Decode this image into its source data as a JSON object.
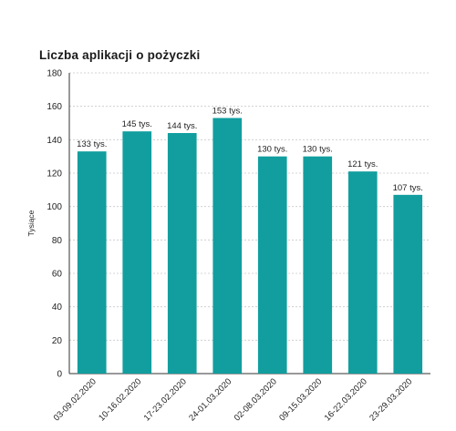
{
  "chart_data": {
    "type": "bar",
    "title": "Liczba aplikacji o pożyczki",
    "ylabel": "Tysiące",
    "xlabel": "",
    "ylim": [
      0,
      180
    ],
    "yticks": [
      0,
      20,
      40,
      60,
      80,
      100,
      120,
      140,
      160,
      180
    ],
    "grid": true,
    "bar_color": "#129e9f",
    "categories": [
      "03-09.02.2020",
      "10-16.02.2020",
      "17-23.02.2020",
      "24-01.03.2020",
      "02-08.03.2020",
      "09-15.03.2020",
      "16-22.03.2020",
      "23-29.03.2020"
    ],
    "values": [
      133,
      145,
      144,
      153,
      130,
      130,
      121,
      107
    ],
    "data_labels": [
      "133 tys.",
      "145 tys.",
      "144 tys.",
      "153 tys.",
      "130 tys.",
      "130 tys.",
      "121 tys.",
      "107 tys."
    ]
  }
}
